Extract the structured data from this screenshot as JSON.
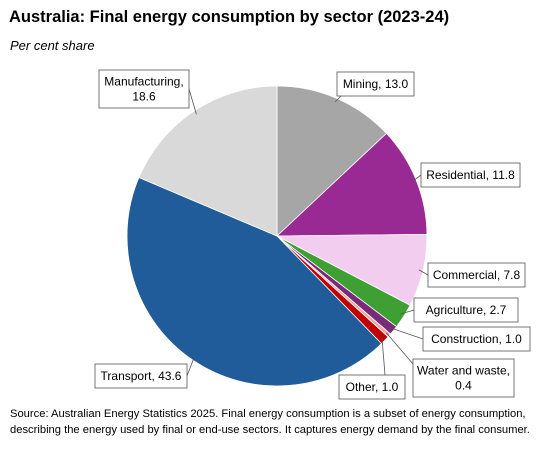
{
  "header": {
    "title": "Australia: Final energy consumption by sector (2023-24)",
    "subtitle": "Per cent share"
  },
  "footer": {
    "source": "Source: Australian Energy Statistics 2025. Final energy consumption is a subset of energy consumption, describing the energy used by final or end-use sectors. It captures energy demand by the final consumer."
  },
  "chart_data": {
    "type": "pie",
    "title": "Australia: Final energy consumption by sector (2023-24)",
    "subtitle": "Per cent share",
    "start_angle_deg": 0,
    "direction": "clockwise",
    "slices": [
      {
        "label": "Mining",
        "value": 13.0,
        "text": "Mining, 13.0",
        "color": "#a6a6a6"
      },
      {
        "label": "Residential",
        "value": 11.8,
        "text": "Residential, 11.8",
        "color": "#9a2a93"
      },
      {
        "label": "Commercial",
        "value": 7.8,
        "text": "Commercial,  7.8",
        "color": "#f2cdf0"
      },
      {
        "label": "Agriculture",
        "value": 2.7,
        "text": "Agriculture, 2.7",
        "color": "#3ea032"
      },
      {
        "label": "Construction",
        "value": 1.0,
        "text": "Construction, 1.0",
        "color": "#7a2a7a"
      },
      {
        "label": "Water and waste",
        "value": 0.4,
        "text": "Water and waste,\n0.4",
        "color": "#f4a7a0"
      },
      {
        "label": "Other",
        "value": 1.0,
        "text": "Other, 1.0",
        "color": "#c00000"
      },
      {
        "label": "Transport",
        "value": 43.6,
        "text": "Transport, 43.6",
        "color": "#1f5c99"
      },
      {
        "label": "Manufacturing",
        "value": 18.6,
        "text": "Manufacturing,\n18.6",
        "color": "#d9d9d9"
      }
    ]
  }
}
